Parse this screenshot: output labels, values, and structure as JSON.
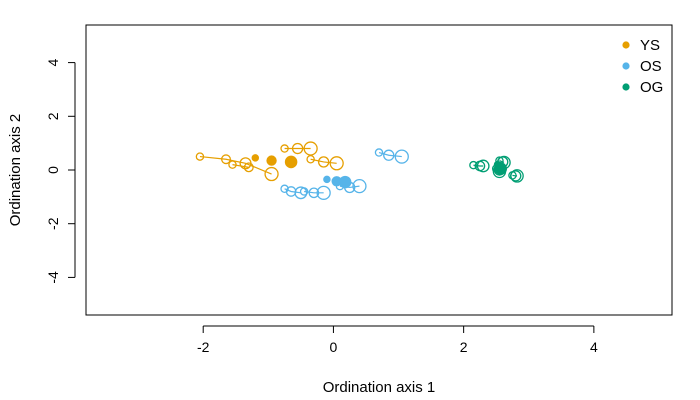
{
  "chart_data": {
    "type": "scatter",
    "xlabel": "Ordination  axis 1",
    "ylabel": "Ordination axis 2",
    "xlim": [
      -3.8,
      5.2
    ],
    "ylim": [
      -5.4,
      5.4
    ],
    "xticks": [
      -2,
      0,
      2,
      4
    ],
    "yticks": [
      -4,
      -2,
      0,
      2,
      4
    ],
    "legend_position": "top-right",
    "series": [
      {
        "name": "YS",
        "color": "#E69F00",
        "trajectories": [
          {
            "points": [
              {
                "x": -2.05,
                "y": 0.5,
                "size": 1
              },
              {
                "x": -1.65,
                "y": 0.4,
                "size": 1.2
              },
              {
                "x": -1.35,
                "y": 0.25,
                "size": 1.5
              },
              {
                "x": -0.95,
                "y": -0.15,
                "size": 1.8
              }
            ]
          },
          {
            "points": [
              {
                "x": -1.55,
                "y": 0.2,
                "size": 1
              },
              {
                "x": -1.3,
                "y": 0.1,
                "size": 1.2
              }
            ]
          },
          {
            "points": [
              {
                "x": -0.75,
                "y": 0.8,
                "size": 1
              },
              {
                "x": -0.55,
                "y": 0.8,
                "size": 1.4
              },
              {
                "x": -0.35,
                "y": 0.8,
                "size": 1.8
              }
            ]
          },
          {
            "points": [
              {
                "x": -0.35,
                "y": 0.4,
                "size": 1
              },
              {
                "x": -0.15,
                "y": 0.3,
                "size": 1.4
              },
              {
                "x": 0.05,
                "y": 0.25,
                "size": 1.8
              }
            ]
          }
        ],
        "filled": [
          {
            "x": -1.2,
            "y": 0.45,
            "size": 0.9
          },
          {
            "x": -0.95,
            "y": 0.35,
            "size": 1.3
          },
          {
            "x": -0.65,
            "y": 0.3,
            "size": 1.6
          }
        ]
      },
      {
        "name": "OS",
        "color": "#56B4E9",
        "trajectories": [
          {
            "points": [
              {
                "x": 0.7,
                "y": 0.65,
                "size": 1
              },
              {
                "x": 0.85,
                "y": 0.55,
                "size": 1.4
              },
              {
                "x": 1.05,
                "y": 0.5,
                "size": 1.8
              }
            ]
          },
          {
            "points": [
              {
                "x": -0.75,
                "y": -0.7,
                "size": 1
              },
              {
                "x": -0.65,
                "y": -0.8,
                "size": 1.3
              },
              {
                "x": -0.5,
                "y": -0.85,
                "size": 1.6
              }
            ]
          },
          {
            "points": [
              {
                "x": -0.45,
                "y": -0.8,
                "size": 1
              },
              {
                "x": -0.3,
                "y": -0.85,
                "size": 1.3
              },
              {
                "x": -0.15,
                "y": -0.85,
                "size": 1.8
              }
            ]
          },
          {
            "points": [
              {
                "x": 0.1,
                "y": -0.6,
                "size": 1
              },
              {
                "x": 0.25,
                "y": -0.65,
                "size": 1.4
              },
              {
                "x": 0.4,
                "y": -0.6,
                "size": 1.8
              }
            ]
          }
        ],
        "filled": [
          {
            "x": -0.1,
            "y": -0.35,
            "size": 0.9
          },
          {
            "x": 0.05,
            "y": -0.42,
            "size": 1.3
          },
          {
            "x": 0.18,
            "y": -0.45,
            "size": 1.6
          }
        ]
      },
      {
        "name": "OG",
        "color": "#009E73",
        "trajectories": [
          {
            "points": [
              {
                "x": 2.15,
                "y": 0.18,
                "size": 1
              },
              {
                "x": 2.25,
                "y": 0.15,
                "size": 1.3
              },
              {
                "x": 2.3,
                "y": 0.15,
                "size": 1.6
              }
            ]
          },
          {
            "points": [
              {
                "x": 2.55,
                "y": 0.35,
                "size": 1
              },
              {
                "x": 2.6,
                "y": 0.3,
                "size": 1.4
              },
              {
                "x": 2.62,
                "y": 0.28,
                "size": 1.7
              }
            ]
          },
          {
            "points": [
              {
                "x": 2.5,
                "y": 0.05,
                "size": 1
              },
              {
                "x": 2.55,
                "y": 0.0,
                "size": 1.4
              },
              {
                "x": 2.55,
                "y": -0.05,
                "size": 1.7
              }
            ]
          },
          {
            "points": [
              {
                "x": 2.75,
                "y": -0.2,
                "size": 1
              },
              {
                "x": 2.8,
                "y": -0.22,
                "size": 1.4
              },
              {
                "x": 2.82,
                "y": -0.22,
                "size": 1.7
              }
            ]
          }
        ],
        "filled": [
          {
            "x": 2.52,
            "y": 0.2,
            "size": 0.9
          },
          {
            "x": 2.55,
            "y": 0.12,
            "size": 1.3
          },
          {
            "x": 2.57,
            "y": 0.05,
            "size": 1.6
          }
        ]
      }
    ]
  }
}
